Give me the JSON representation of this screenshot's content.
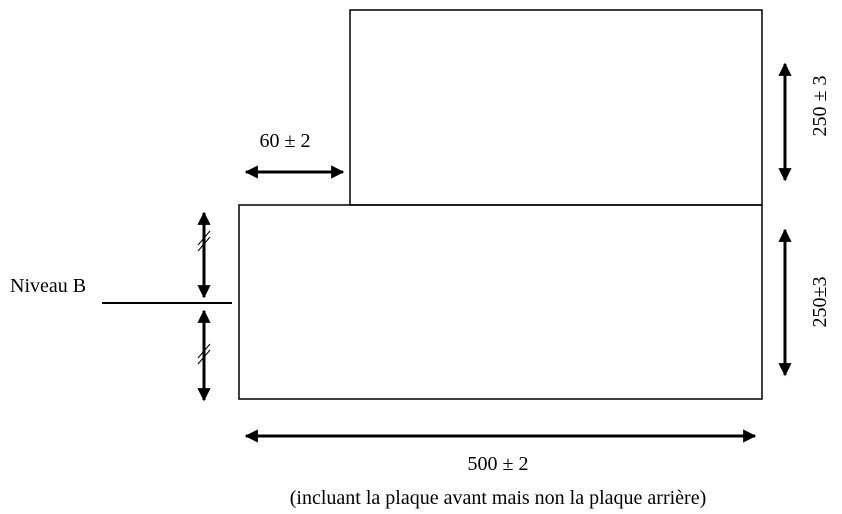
{
  "labels": {
    "offset": "60 ± 2",
    "upper_height": "250 ± 3",
    "level": "Niveau B",
    "lower_height": "250±3",
    "width": "500 ± 2",
    "note": "(incluant la plaque avant mais non la plaque arrière)"
  }
}
